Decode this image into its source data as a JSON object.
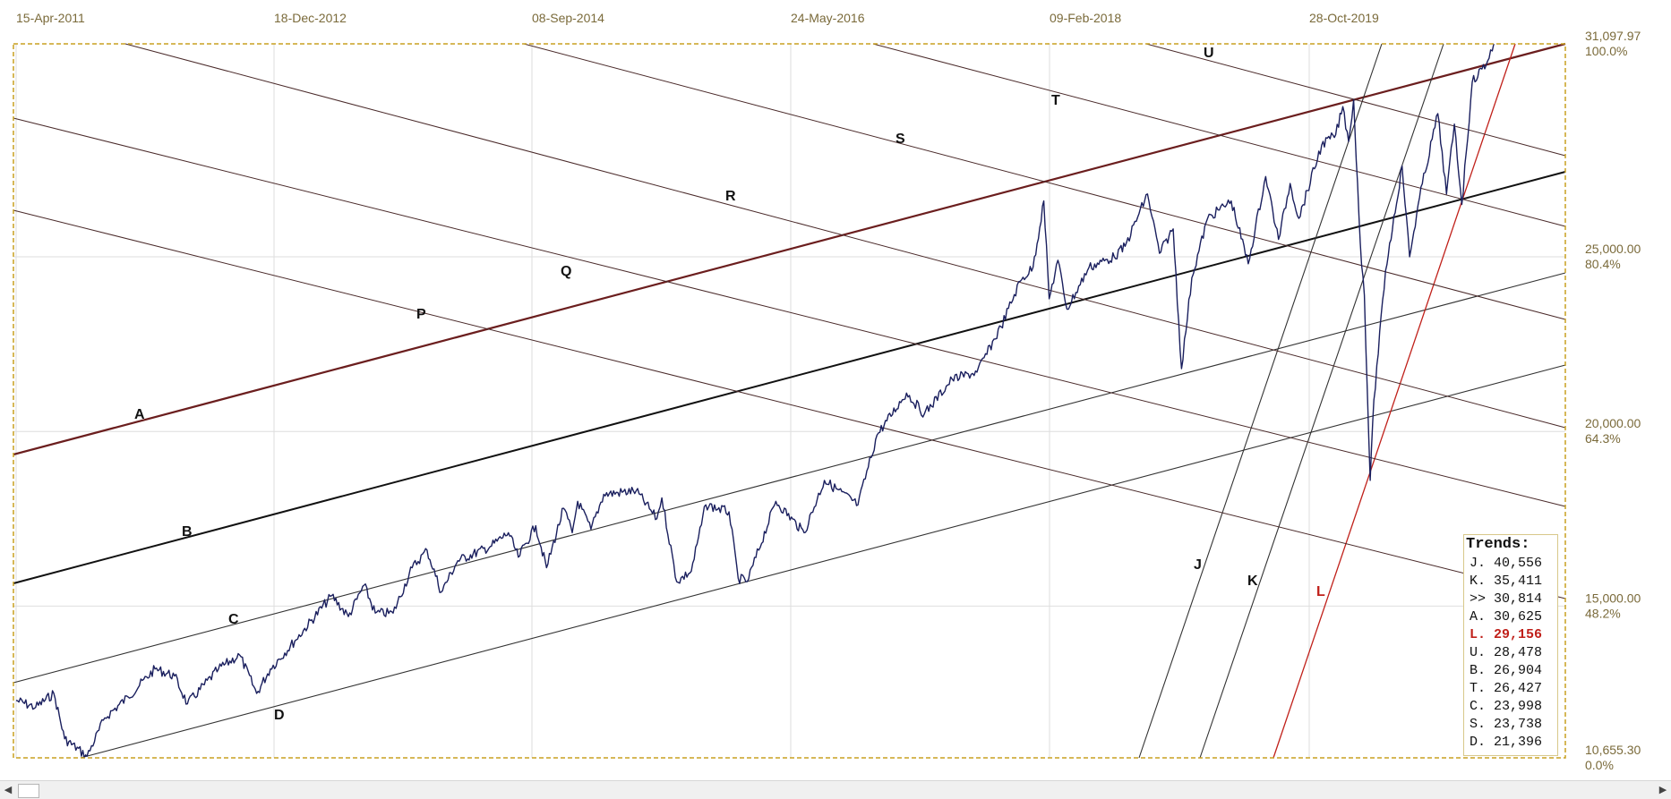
{
  "chart_data": {
    "type": "line",
    "x_axis": {
      "tick_labels": [
        "15-Apr-2011",
        "18-Dec-2012",
        "08-Sep-2014",
        "24-May-2016",
        "09-Feb-2018",
        "28-Oct-2019"
      ]
    },
    "y_axis": {
      "range": [
        10655.3,
        31097.97
      ],
      "ticks": [
        {
          "value": 31097.97,
          "label": "31,097.97",
          "pct": "100.0%"
        },
        {
          "value": 25000,
          "label": "25,000.00",
          "pct": "80.4%"
        },
        {
          "value": 20000,
          "label": "20,000.00",
          "pct": "64.3%"
        },
        {
          "value": 15000,
          "label": "15,000.00",
          "pct": "48.2%"
        },
        {
          "value": 10655.3,
          "label": "10,655.30",
          "pct": "0.0%"
        }
      ],
      "grid": true
    },
    "series": [
      {
        "color": "#1a1f5e",
        "points": [
          [
            "2011-04-15",
            12300
          ],
          [
            "2011-06-01",
            12100
          ],
          [
            "2011-07-15",
            12500
          ],
          [
            "2011-08-10",
            11200
          ],
          [
            "2011-10-03",
            10700
          ],
          [
            "2011-11-15",
            11800
          ],
          [
            "2012-01-10",
            12400
          ],
          [
            "2012-03-15",
            13200
          ],
          [
            "2012-05-01",
            13000
          ],
          [
            "2012-06-01",
            12200
          ],
          [
            "2012-08-15",
            13200
          ],
          [
            "2012-10-05",
            13600
          ],
          [
            "2012-11-15",
            12500
          ],
          [
            "2012-12-18",
            13200
          ],
          [
            "2013-02-15",
            14000
          ],
          [
            "2013-05-15",
            15300
          ],
          [
            "2013-06-24",
            14700
          ],
          [
            "2013-08-01",
            15600
          ],
          [
            "2013-08-28",
            14800
          ],
          [
            "2013-10-10",
            14800
          ],
          [
            "2013-11-25",
            16100
          ],
          [
            "2013-12-31",
            16600
          ],
          [
            "2014-02-03",
            15400
          ],
          [
            "2014-03-15",
            16300
          ],
          [
            "2014-06-01",
            16700
          ],
          [
            "2014-07-15",
            17100
          ],
          [
            "2014-08-08",
            16400
          ],
          [
            "2014-09-19",
            17300
          ],
          [
            "2014-10-15",
            16100
          ],
          [
            "2014-11-25",
            17800
          ],
          [
            "2014-12-16",
            17100
          ],
          [
            "2014-12-29",
            18000
          ],
          [
            "2015-01-30",
            17200
          ],
          [
            "2015-03-02",
            18200
          ],
          [
            "2015-05-19",
            18300
          ],
          [
            "2015-07-08",
            17500
          ],
          [
            "2015-07-20",
            18100
          ],
          [
            "2015-08-25",
            15700
          ],
          [
            "2015-09-29",
            16000
          ],
          [
            "2015-11-03",
            17900
          ],
          [
            "2015-12-29",
            17700
          ],
          [
            "2016-01-20",
            15800
          ],
          [
            "2016-02-11",
            15700
          ],
          [
            "2016-04-20",
            18000
          ],
          [
            "2016-06-27",
            17100
          ],
          [
            "2016-08-15",
            18600
          ],
          [
            "2016-11-04",
            17900
          ],
          [
            "2016-12-20",
            19900
          ],
          [
            "2017-03-01",
            21100
          ],
          [
            "2017-04-13",
            20500
          ],
          [
            "2017-06-19",
            21500
          ],
          [
            "2017-08-18",
            21700
          ],
          [
            "2017-10-15",
            23000
          ],
          [
            "2017-11-30",
            24300
          ],
          [
            "2017-12-31",
            24700
          ],
          [
            "2018-01-26",
            26600
          ],
          [
            "2018-02-08",
            23800
          ],
          [
            "2018-03-01",
            24900
          ],
          [
            "2018-03-23",
            23500
          ],
          [
            "2018-05-15",
            24700
          ],
          [
            "2018-07-15",
            25000
          ],
          [
            "2018-08-10",
            25300
          ],
          [
            "2018-10-03",
            26800
          ],
          [
            "2018-11-01",
            25100
          ],
          [
            "2018-12-04",
            25800
          ],
          [
            "2018-12-24",
            21800
          ],
          [
            "2019-01-18",
            24400
          ],
          [
            "2019-02-25",
            26100
          ],
          [
            "2019-04-23",
            26600
          ],
          [
            "2019-06-03",
            24800
          ],
          [
            "2019-07-15",
            27300
          ],
          [
            "2019-08-15",
            25500
          ],
          [
            "2019-09-12",
            27100
          ],
          [
            "2019-10-03",
            26100
          ],
          [
            "2019-11-27",
            28200
          ],
          [
            "2019-12-31",
            28500
          ],
          [
            "2020-01-17",
            29300
          ],
          [
            "2020-01-31",
            28300
          ],
          [
            "2020-02-12",
            29500
          ],
          [
            "2020-02-28",
            25400
          ],
          [
            "2020-03-09",
            23900
          ],
          [
            "2020-03-23",
            18600
          ],
          [
            "2020-04-01",
            20900
          ],
          [
            "2020-04-29",
            24600
          ],
          [
            "2020-06-08",
            27600
          ],
          [
            "2020-06-26",
            25000
          ],
          [
            "2020-07-20",
            26700
          ],
          [
            "2020-09-02",
            29100
          ],
          [
            "2020-09-23",
            26800
          ],
          [
            "2020-10-12",
            28800
          ],
          [
            "2020-10-30",
            26500
          ],
          [
            "2020-11-24",
            30000
          ],
          [
            "2020-12-31",
            30600
          ],
          [
            "2021-01-15",
            31097
          ]
        ]
      }
    ],
    "trend_lines": [
      {
        "name": "A",
        "color": "#6b1e1e"
      },
      {
        "name": "B",
        "color": "#111111"
      },
      {
        "name": "C",
        "color": "#333333"
      },
      {
        "name": "D",
        "color": "#333333"
      },
      {
        "name": "J",
        "color": "#333333"
      },
      {
        "name": "K",
        "color": "#333333"
      },
      {
        "name": "L",
        "color": "#c0201a"
      },
      {
        "name": "P",
        "color": "#4a2a2a"
      },
      {
        "name": "Q",
        "color": "#4a2a2a"
      },
      {
        "name": "R",
        "color": "#4a2a2a"
      },
      {
        "name": "S",
        "color": "#4a2a2a"
      },
      {
        "name": "T",
        "color": "#4a2a2a"
      },
      {
        "name": "U",
        "color": "#4a2a2a"
      }
    ],
    "trends_table": {
      "title": "Trends:",
      "rows": [
        {
          "label": "J.",
          "value": "40,556",
          "highlight": false
        },
        {
          "label": "K.",
          "value": "35,411",
          "highlight": false
        },
        {
          "label": ">>",
          "value": "30,814",
          "highlight": false
        },
        {
          "label": "A.",
          "value": "30,625",
          "highlight": false
        },
        {
          "label": "L.",
          "value": "29,156",
          "highlight": true
        },
        {
          "label": "U.",
          "value": "28,478",
          "highlight": false
        },
        {
          "label": "B.",
          "value": "26,904",
          "highlight": false
        },
        {
          "label": "T.",
          "value": "26,427",
          "highlight": false
        },
        {
          "label": "C.",
          "value": "23,998",
          "highlight": false
        },
        {
          "label": "S.",
          "value": "23,738",
          "highlight": false
        },
        {
          "label": "D.",
          "value": "21,396",
          "highlight": false
        }
      ]
    },
    "colors": {
      "price": "#1a1f5e",
      "frame": "#c8a020",
      "highlight": "#c0201a",
      "axis_text": "#7a6a3a"
    }
  }
}
